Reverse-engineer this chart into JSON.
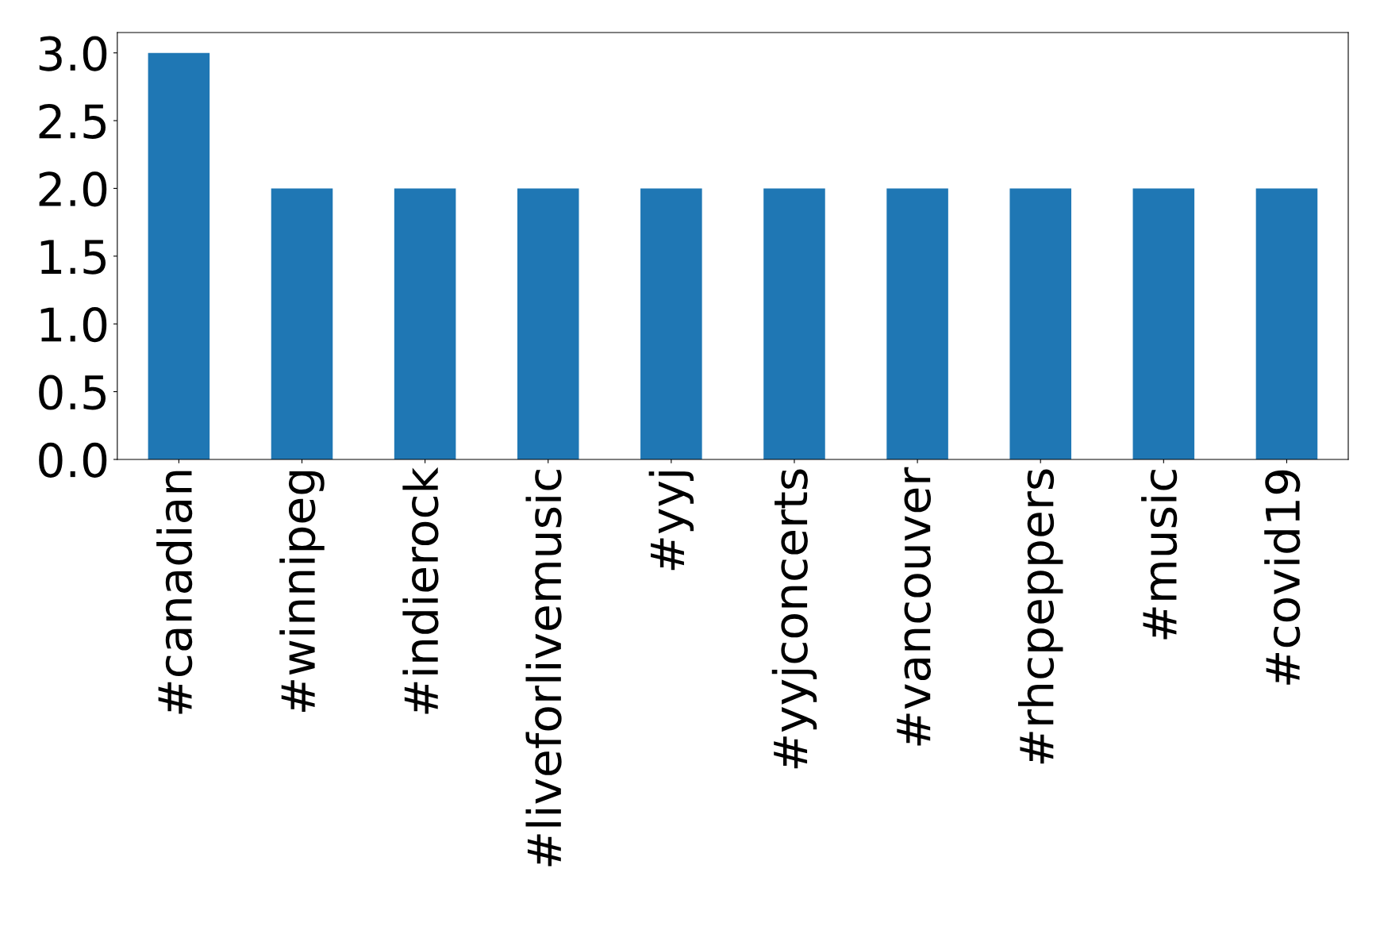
{
  "chart_data": {
    "type": "bar",
    "categories": [
      "#canadian",
      "#winnipeg",
      "#indierock",
      "#liveforlivemusic",
      "#yyj",
      "#yyjconcerts",
      "#vancouver",
      "#rhcpeppers",
      "#music",
      "#covid19"
    ],
    "values": [
      3,
      2,
      2,
      2,
      2,
      2,
      2,
      2,
      2,
      2
    ],
    "color": "#1f77b4",
    "ylim": [
      0,
      3.15
    ],
    "yticks": [
      {
        "value": 0,
        "label": "0.0"
      },
      {
        "value": 0.5,
        "label": "0.5"
      },
      {
        "value": 1,
        "label": "1.0"
      },
      {
        "value": 1.5,
        "label": "1.5"
      },
      {
        "value": 2,
        "label": "2.0"
      },
      {
        "value": 2.5,
        "label": "2.5"
      },
      {
        "value": 3,
        "label": "3.0"
      }
    ],
    "grid": false,
    "legend": false
  }
}
